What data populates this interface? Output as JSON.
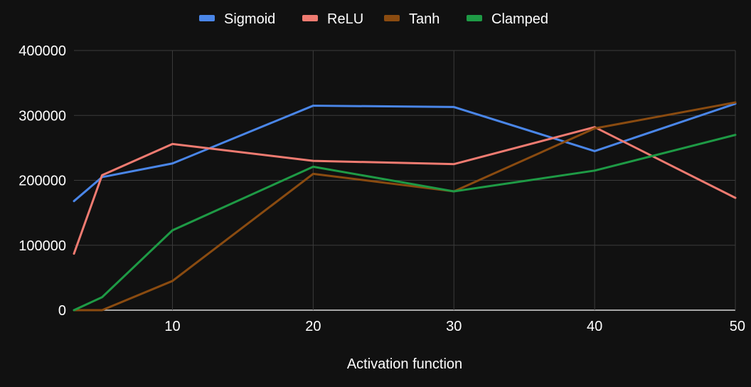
{
  "chart_data": {
    "type": "line",
    "xlabel": "Activation function",
    "xlim": [
      3,
      50
    ],
    "ylim": [
      0,
      400000
    ],
    "x_ticks": [
      "10",
      "20",
      "30",
      "40",
      "50"
    ],
    "y_ticks": [
      "0",
      "100000",
      "200000",
      "300000",
      "400000"
    ],
    "grid": true,
    "legend_position": "top-center",
    "x": [
      3,
      5,
      10,
      20,
      30,
      40,
      50
    ],
    "series": [
      {
        "name": "Sigmoid",
        "color": "#4a86e8",
        "values": [
          168000,
          205000,
          226000,
          315000,
          313000,
          245000,
          318000
        ]
      },
      {
        "name": "ReLU",
        "color": "#ef7b71",
        "values": [
          87000,
          208000,
          256000,
          230000,
          225000,
          282000,
          173000
        ]
      },
      {
        "name": "Tanh",
        "color": "#8a4b10",
        "values": [
          0,
          0,
          45000,
          210000,
          183000,
          280000,
          320000
        ]
      },
      {
        "name": "Clamped",
        "color": "#1e9a45",
        "values": [
          0,
          20000,
          123000,
          221000,
          183000,
          215000,
          270000
        ]
      }
    ]
  }
}
